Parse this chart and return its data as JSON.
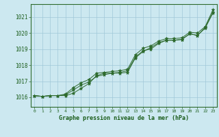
{
  "title": "Graphe pression niveau de la mer (hPa)",
  "bg_color": "#cce8f0",
  "grid_color": "#a0c8d8",
  "line_color": "#2d6a2d",
  "text_color": "#1a5c1a",
  "xlim": [
    -0.5,
    23.5
  ],
  "ylim": [
    1015.4,
    1021.8
  ],
  "yticks": [
    1016,
    1017,
    1018,
    1019,
    1020,
    1021
  ],
  "xticks": [
    0,
    1,
    2,
    3,
    4,
    5,
    6,
    7,
    8,
    9,
    10,
    11,
    12,
    13,
    14,
    15,
    16,
    17,
    18,
    19,
    20,
    21,
    22,
    23
  ],
  "series": [
    [
      1016.1,
      1016.05,
      1016.1,
      1016.1,
      1016.1,
      1016.25,
      1016.55,
      1016.85,
      1017.35,
      1017.5,
      1017.5,
      1017.5,
      1017.55,
      1018.45,
      1018.85,
      1019.1,
      1019.4,
      1019.55,
      1019.55,
      1019.6,
      1019.95,
      1019.85,
      1020.35,
      1021.3
    ],
    [
      1016.1,
      1016.05,
      1016.1,
      1016.1,
      1016.15,
      1016.45,
      1016.75,
      1016.95,
      1017.3,
      1017.4,
      1017.5,
      1017.55,
      1017.65,
      1018.5,
      1018.9,
      1019.0,
      1019.35,
      1019.55,
      1019.55,
      1019.6,
      1019.95,
      1019.85,
      1020.3,
      1021.25
    ],
    [
      1016.1,
      1016.05,
      1016.1,
      1016.1,
      1016.2,
      1016.6,
      1016.9,
      1017.1,
      1017.5,
      1017.55,
      1017.6,
      1017.65,
      1017.75,
      1018.65,
      1019.05,
      1019.2,
      1019.5,
      1019.65,
      1019.65,
      1019.7,
      1020.05,
      1020.0,
      1020.4,
      1021.45
    ]
  ]
}
